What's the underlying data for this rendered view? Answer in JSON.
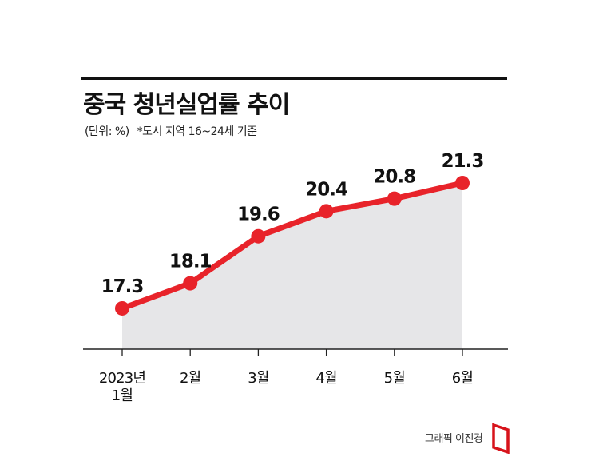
{
  "header": {
    "title": "중국 청년실업률 추이",
    "unit_text": "(단위: %)",
    "note_text": "*도시 지역 16~24세 기준"
  },
  "chart_data": {
    "type": "line",
    "title": "중국 청년실업률 추이",
    "xlabel": "",
    "ylabel": "",
    "unit": "%",
    "categories": [
      [
        "2023년",
        "1월"
      ],
      [
        "2월"
      ],
      [
        "3월"
      ],
      [
        "4월"
      ],
      [
        "5월"
      ],
      [
        "6월"
      ]
    ],
    "values": [
      17.3,
      18.1,
      19.6,
      20.4,
      20.8,
      21.3
    ],
    "value_labels": [
      "17.3",
      "18.1",
      "19.6",
      "20.4",
      "20.8",
      "21.3"
    ],
    "ylim": [
      16.0,
      21.3
    ],
    "grid": false,
    "legend": "none",
    "style": "area under line",
    "colors": {
      "line": "#e8232a",
      "area": "#e6e6e8",
      "axis": "#222222"
    }
  },
  "footer": {
    "credit": "그래픽 이진경",
    "brand_color": "#d7131b"
  }
}
